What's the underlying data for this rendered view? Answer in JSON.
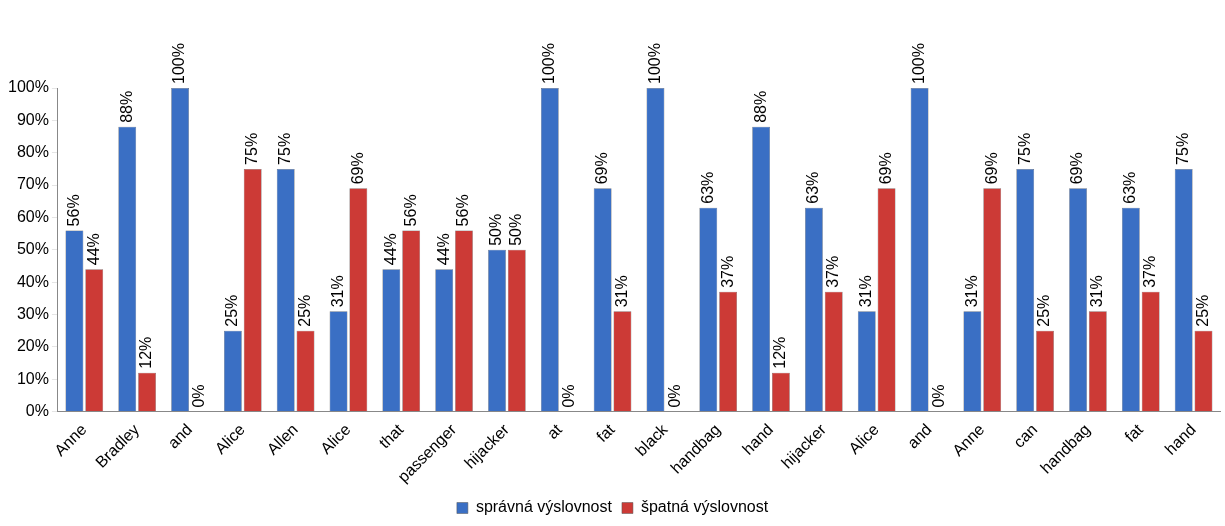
{
  "chart_data": {
    "type": "bar",
    "categories": [
      "Anne",
      "Bradley",
      "and",
      "Alice",
      "Allen",
      "Alice",
      "that",
      "passenger",
      "hijacker",
      "at",
      "fat",
      "black",
      "handbag",
      "hand",
      "hijacker",
      "Alice",
      "and",
      "Anne",
      "can",
      "handbag",
      "fat",
      "hand"
    ],
    "series": [
      {
        "name": "správná výslovnost",
        "color": "#3a6fc4",
        "values": [
          56,
          88,
          100,
          25,
          75,
          31,
          44,
          44,
          50,
          100,
          69,
          100,
          63,
          88,
          63,
          31,
          100,
          31,
          75,
          69,
          63,
          75
        ],
        "value_labels": [
          "56%",
          "88%",
          "100%",
          "25%",
          "75%",
          "31%",
          "44%",
          "44%",
          "50%",
          "100%",
          "69%",
          "100%",
          "63%",
          "88%",
          "63%",
          "31%",
          "100%",
          "31%",
          "75%",
          "69%",
          "63%",
          "75%"
        ]
      },
      {
        "name": "špatná výslovnost",
        "color": "#cc3a36",
        "values": [
          44,
          12,
          0,
          75,
          25,
          69,
          56,
          56,
          50,
          0,
          31,
          0,
          37,
          12,
          37,
          69,
          0,
          69,
          25,
          31,
          37,
          25
        ],
        "value_labels": [
          "44%",
          "12%",
          "0%",
          "75%",
          "25%",
          "69%",
          "56%",
          "56%",
          "50%",
          "0%",
          "31%",
          "0%",
          "37%",
          "12%",
          "37%",
          "69%",
          "0%",
          "69%",
          "25%",
          "31%",
          "37%",
          "25%"
        ]
      }
    ],
    "ylim": [
      0,
      100
    ],
    "yticks": [
      {
        "value": 0,
        "label": "0%"
      },
      {
        "value": 10,
        "label": "10%"
      },
      {
        "value": 20,
        "label": "20%"
      },
      {
        "value": 30,
        "label": "30%"
      },
      {
        "value": 40,
        "label": "40%"
      },
      {
        "value": 50,
        "label": "50%"
      },
      {
        "value": 60,
        "label": "60%"
      },
      {
        "value": 70,
        "label": "70%"
      },
      {
        "value": 80,
        "label": "80%"
      },
      {
        "value": 90,
        "label": "90%"
      },
      {
        "value": 100,
        "label": "100%"
      }
    ],
    "grid": false,
    "legend": "bottom"
  }
}
